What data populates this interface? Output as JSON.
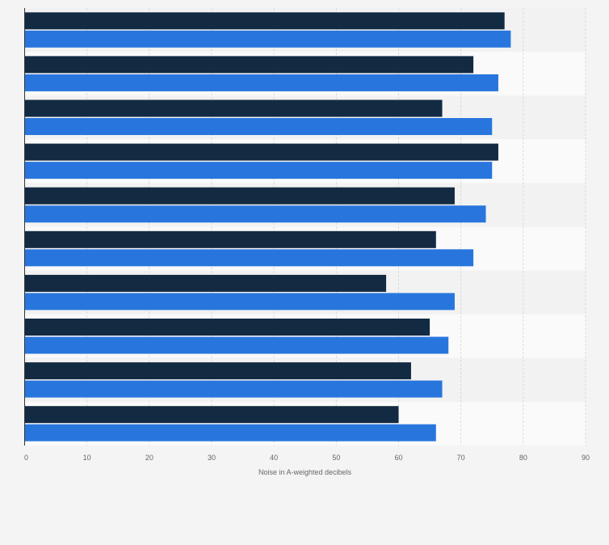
{
  "chart_data": {
    "type": "bar",
    "orientation": "horizontal",
    "title": "",
    "xlabel": "Noise in A-weighted decibels",
    "ylabel": "",
    "xlim": [
      0,
      90
    ],
    "x_ticks": [
      0,
      10,
      20,
      30,
      40,
      50,
      60,
      70,
      80,
      90
    ],
    "grid": "vertical",
    "legend": "none",
    "categories": [
      "",
      "",
      "",
      "",
      "",
      "",
      "",
      "",
      "",
      ""
    ],
    "series": [
      {
        "color": "#132a43",
        "values": [
          77,
          72,
          67,
          76,
          69,
          66,
          58,
          65,
          62,
          60
        ]
      },
      {
        "color": "#2876dd",
        "values": [
          78,
          76,
          75,
          75,
          74,
          72,
          69,
          68,
          67,
          66
        ]
      }
    ]
  }
}
